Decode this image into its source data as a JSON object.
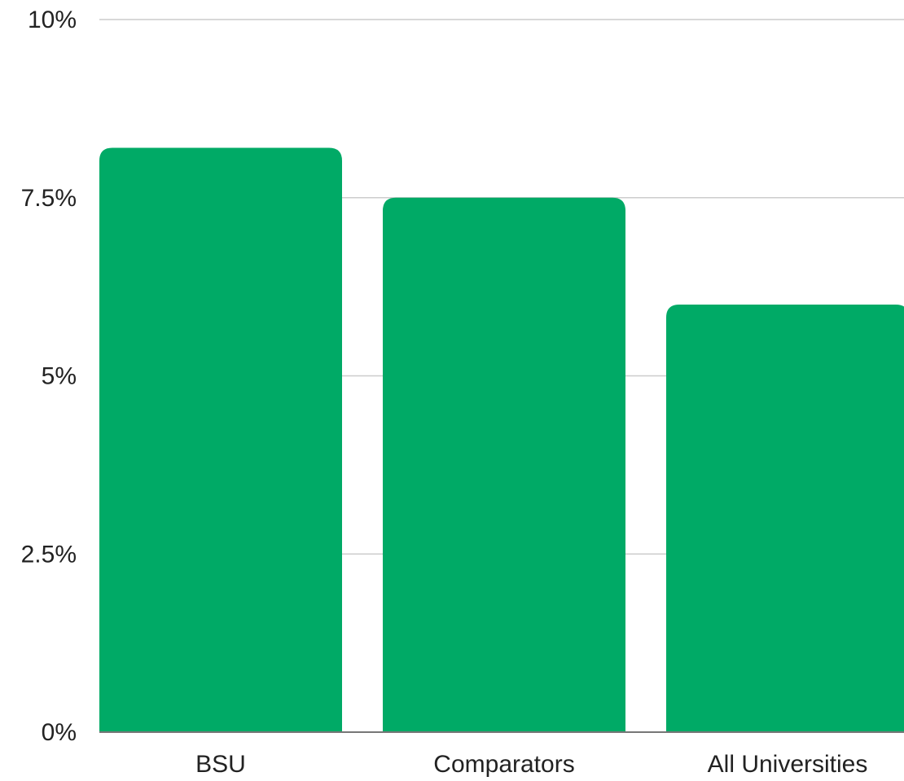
{
  "chart_data": {
    "type": "bar",
    "categories": [
      "BSU",
      "Comparators",
      "All Universities"
    ],
    "values": [
      8.2,
      7.5,
      6.0
    ],
    "y_ticks": [
      "0%",
      "2.5%",
      "5%",
      "7.5%",
      "10%"
    ],
    "ylim": [
      0,
      10
    ],
    "grid": true,
    "legend": "none",
    "title": "",
    "xlabel": "",
    "ylabel": "",
    "colors": {
      "bar": "#00aa66",
      "grid": "#cccccc",
      "axis": "#777777"
    }
  }
}
